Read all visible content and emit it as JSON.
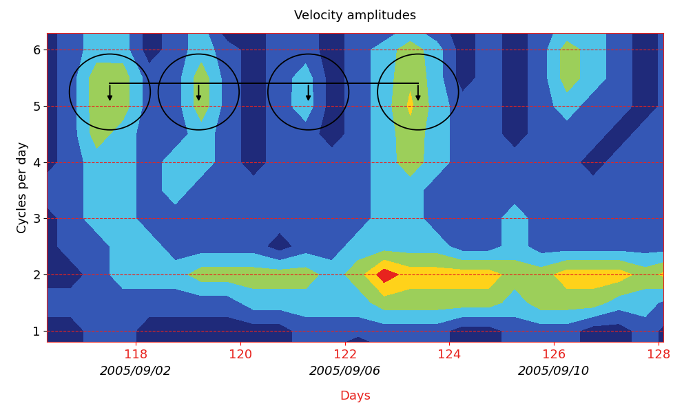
{
  "chart_data": {
    "type": "contour",
    "title": "Velocity amplitudes",
    "x_label": "Days",
    "y_label": "Cycles per day",
    "xlim": [
      116.3,
      128.1
    ],
    "ylim": [
      0.8,
      6.3
    ],
    "xticks": [
      118,
      120,
      122,
      124,
      126,
      128
    ],
    "yticks": [
      1,
      2,
      3,
      4,
      5,
      6
    ],
    "grid": true,
    "date_labels": [
      {
        "x": 118,
        "label": "2005/09/02"
      },
      {
        "x": 122,
        "label": "2005/09/06"
      },
      {
        "x": 126,
        "label": "2005/09/10"
      }
    ],
    "highlights": {
      "x": [
        117.5,
        119.2,
        121.3,
        123.4
      ],
      "y": 5.25
    },
    "levels": [
      0,
      1,
      2,
      3,
      4,
      5,
      6
    ],
    "colors": [
      "#1f2a7a",
      "#3457b5",
      "#4fc3e8",
      "#9ccf5a",
      "#ffd21a",
      "#e8231e"
    ],
    "x": [
      116.25,
      116.75,
      117.25,
      117.75,
      118.25,
      118.75,
      119.25,
      119.75,
      120.25,
      120.75,
      121.25,
      121.75,
      122.25,
      122.75,
      123.25,
      123.75,
      124.25,
      124.75,
      125.25,
      125.75,
      126.25,
      126.75,
      127.25,
      127.75,
      128.25
    ],
    "y": [
      0.8,
      1.0,
      1.5,
      2.0,
      2.5,
      3.0,
      3.5,
      4.0,
      4.5,
      5.0,
      5.5,
      6.0,
      6.3
    ],
    "cells": [
      [
        0.5,
        0.5,
        1.5,
        1.5,
        0.5,
        0.5,
        0.5,
        0.5,
        0.5,
        0.5,
        1.5,
        1.5,
        0.5,
        1.5,
        1.5,
        1.5,
        0.5,
        0.5,
        1.5,
        1.5,
        1.5,
        0.5,
        0.5,
        1.5,
        0.5
      ],
      [
        0.5,
        0.5,
        1.5,
        1.5,
        0.5,
        0.5,
        0.5,
        0.5,
        0.5,
        0.5,
        1.5,
        1.5,
        1.5,
        1.5,
        1.5,
        1.5,
        0.5,
        0.5,
        1.5,
        1.5,
        1.5,
        0.5,
        0.5,
        1.5,
        0.5
      ],
      [
        1.5,
        1.5,
        1.5,
        1.5,
        1.5,
        1.5,
        1.5,
        1.5,
        2.5,
        2.5,
        2.5,
        2.5,
        2.5,
        3.5,
        3.5,
        3.5,
        3.5,
        3.5,
        2.5,
        3.5,
        3.5,
        3.5,
        2.5,
        2.5,
        1.5
      ],
      [
        0.5,
        0.5,
        1.5,
        2.5,
        2.5,
        2.5,
        3.5,
        3.5,
        3.5,
        3.5,
        3.5,
        2.5,
        3.5,
        5.6,
        4.5,
        4.5,
        4.5,
        4.5,
        3.5,
        3.5,
        4.5,
        4.5,
        4.5,
        3.5,
        4.5
      ],
      [
        0.5,
        1.5,
        1.5,
        2.5,
        2.5,
        1.5,
        1.5,
        1.5,
        1.5,
        0.5,
        1.5,
        1.5,
        2.5,
        2.5,
        2.5,
        2.5,
        1.5,
        1.5,
        2.5,
        1.5,
        1.5,
        1.5,
        1.5,
        1.5,
        1.5
      ],
      [
        0.5,
        1.5,
        2.5,
        2.5,
        1.5,
        1.5,
        1.5,
        1.5,
        1.5,
        1.5,
        1.5,
        1.5,
        1.5,
        2.5,
        2.5,
        1.5,
        1.5,
        1.5,
        2.5,
        1.5,
        1.5,
        1.5,
        1.5,
        1.5,
        1.5
      ],
      [
        1.5,
        1.5,
        2.5,
        2.5,
        1.5,
        2.5,
        1.5,
        1.5,
        1.5,
        1.5,
        1.5,
        1.5,
        1.5,
        2.5,
        2.5,
        1.5,
        1.5,
        1.5,
        1.5,
        1.5,
        1.5,
        1.5,
        1.5,
        1.5,
        1.5
      ],
      [
        0.5,
        1.5,
        2.5,
        2.5,
        1.5,
        2.5,
        2.5,
        1.5,
        0.5,
        1.5,
        1.5,
        1.5,
        1.5,
        2.5,
        3.5,
        2.5,
        1.5,
        1.5,
        1.5,
        1.5,
        1.5,
        0.5,
        1.5,
        1.5,
        1.5
      ],
      [
        0.5,
        1.5,
        3.5,
        2.5,
        1.5,
        1.5,
        2.5,
        1.5,
        0.5,
        1.5,
        1.5,
        0.5,
        1.5,
        2.5,
        3.6,
        2.5,
        1.5,
        1.5,
        0.5,
        1.5,
        1.5,
        1.5,
        0.5,
        1.5,
        1.5
      ],
      [
        0.5,
        1.5,
        3.6,
        3.5,
        1.5,
        1.5,
        3.6,
        1.5,
        0.5,
        1.5,
        2.6,
        0.5,
        1.5,
        2.5,
        4.2,
        2.5,
        1.5,
        1.5,
        0.5,
        1.5,
        2.5,
        1.5,
        1.5,
        0.5,
        1.5
      ],
      [
        0.5,
        1.5,
        3.6,
        3.5,
        1.5,
        1.5,
        3.6,
        1.5,
        0.5,
        1.5,
        2.5,
        0.5,
        1.5,
        2.5,
        3.8,
        2.5,
        0.5,
        1.5,
        0.5,
        1.5,
        3.5,
        2.5,
        1.5,
        0.5,
        1.5
      ],
      [
        0.5,
        1.5,
        2.5,
        2.5,
        0.5,
        1.5,
        2.5,
        1.5,
        0.5,
        1.5,
        1.5,
        0.5,
        1.5,
        2.5,
        3.5,
        2.5,
        0.5,
        1.5,
        0.5,
        1.5,
        3.5,
        2.5,
        1.5,
        0.5,
        1.5
      ],
      [
        0.5,
        1.5,
        2.5,
        2.5,
        0.5,
        1.5,
        2.5,
        0.5,
        0.5,
        1.5,
        1.5,
        0.5,
        1.5,
        1.5,
        2.5,
        1.5,
        0.5,
        1.5,
        0.5,
        1.5,
        2.5,
        2.5,
        1.5,
        0.5,
        1.5
      ]
    ]
  }
}
